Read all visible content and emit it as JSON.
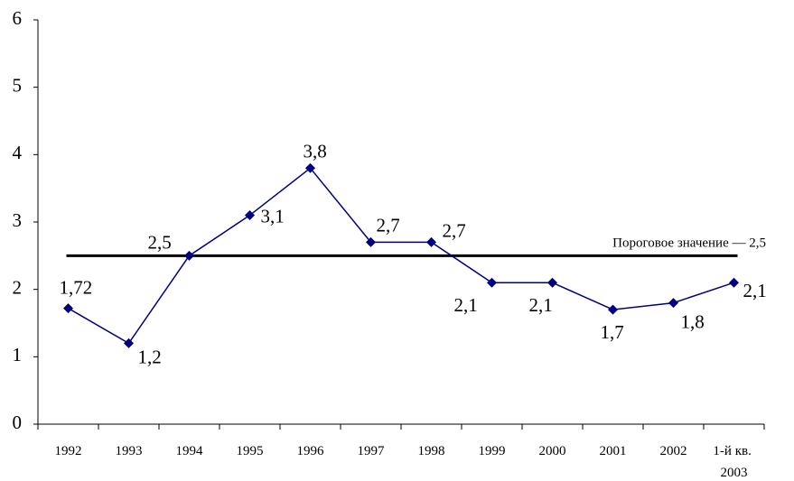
{
  "chart_data": {
    "type": "line",
    "categories": [
      "1992",
      "1993",
      "1994",
      "1995",
      "1996",
      "1997",
      "1998",
      "1999",
      "2000",
      "2001",
      "2002",
      "1-й кв. 2003"
    ],
    "series": [
      {
        "color": "#000080",
        "values": [
          1.72,
          1.2,
          2.5,
          3.1,
          3.8,
          2.7,
          2.7,
          2.1,
          2.1,
          1.7,
          1.8,
          2.1
        ],
        "value_labels": [
          "1,72",
          "1,2",
          "2,5",
          "3,1",
          "3,8",
          "2,7",
          "2,7",
          "2,1",
          "2,1",
          "1,7",
          "1,8",
          "2,1"
        ]
      }
    ],
    "threshold": {
      "value": 2.5,
      "label": "Пороговое значение — 2,5",
      "color": "#000000"
    },
    "ylim": [
      0,
      6
    ],
    "yticks": [
      0,
      1,
      2,
      3,
      4,
      5,
      6
    ],
    "grid": false
  }
}
